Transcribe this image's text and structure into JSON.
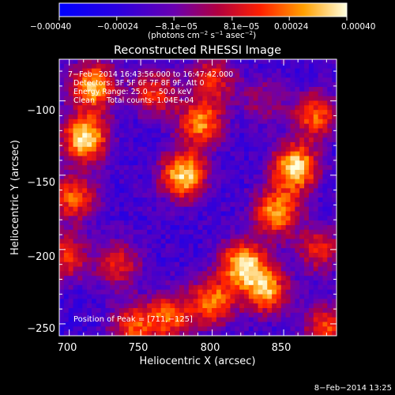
{
  "chart_data": {
    "type": "heatmap",
    "title": "Reconstructed RHESSI Image",
    "xlabel": "Heliocentric X (arcsec)",
    "ylabel": "Heliocentric Y (arcsec)",
    "xlim": [
      693,
      887
    ],
    "ylim": [
      -258,
      -72
    ],
    "x_ticks": [
      700,
      750,
      800,
      850
    ],
    "x_tick_labels": [
      "700",
      "750",
      "800",
      "850"
    ],
    "y_ticks": [
      -100,
      -150,
      -200,
      -250
    ],
    "y_tick_labels": [
      "−100",
      "−150",
      "−200",
      "−250"
    ],
    "colorbar": {
      "range": [
        -0.0004,
        0.0004
      ],
      "tick_labels": [
        "−0.00040",
        "−0.00024",
        "−8.1e−05",
        "8.1e−05",
        "0.00024",
        "0.00040"
      ],
      "units_prefix": "(photons cm",
      "units_sup1": "−2",
      "units_mid": " s",
      "units_sup2": "−1",
      "units_suffix": " asec",
      "units_sup3": "−2",
      "units_end": ")",
      "colormap": "blue-purple-red-yellow-white"
    },
    "annotations": [
      "7−Feb−2014 16:43:56.000 to 16:47:42.000",
      "Detectors: 3F 5F 6F 7F 8F 9F, Att 0",
      "Energy Range: 25.0 − 50.0 keV",
      "Clean     Total counts: 1.04E+04"
    ],
    "peak_label": "Position of Peak = [711,−125]",
    "peak": [
      711,
      -125
    ],
    "sources": [
      {
        "x": 711,
        "y": -125,
        "amp": 1.0
      },
      {
        "x": 717,
        "y": -90,
        "amp": 0.85
      },
      {
        "x": 703,
        "y": -165,
        "amp": 0.65
      },
      {
        "x": 698,
        "y": -205,
        "amp": 0.55
      },
      {
        "x": 780,
        "y": -150,
        "amp": 0.95
      },
      {
        "x": 792,
        "y": -115,
        "amp": 0.75
      },
      {
        "x": 760,
        "y": -95,
        "amp": 0.55
      },
      {
        "x": 800,
        "y": -85,
        "amp": 0.55
      },
      {
        "x": 858,
        "y": -145,
        "amp": 1.0
      },
      {
        "x": 845,
        "y": -175,
        "amp": 0.8
      },
      {
        "x": 872,
        "y": -110,
        "amp": 0.65
      },
      {
        "x": 822,
        "y": -210,
        "amp": 0.95
      },
      {
        "x": 838,
        "y": -228,
        "amp": 0.8
      },
      {
        "x": 800,
        "y": -235,
        "amp": 0.75
      },
      {
        "x": 770,
        "y": -245,
        "amp": 0.65
      },
      {
        "x": 745,
        "y": -252,
        "amp": 0.6
      },
      {
        "x": 735,
        "y": -210,
        "amp": 0.5
      },
      {
        "x": 875,
        "y": -200,
        "amp": 0.5
      },
      {
        "x": 880,
        "y": -253,
        "amp": 0.6
      },
      {
        "x": 835,
        "y": -100,
        "amp": 0.3
      }
    ]
  },
  "timestamp": "8−Feb−2014 13:25"
}
